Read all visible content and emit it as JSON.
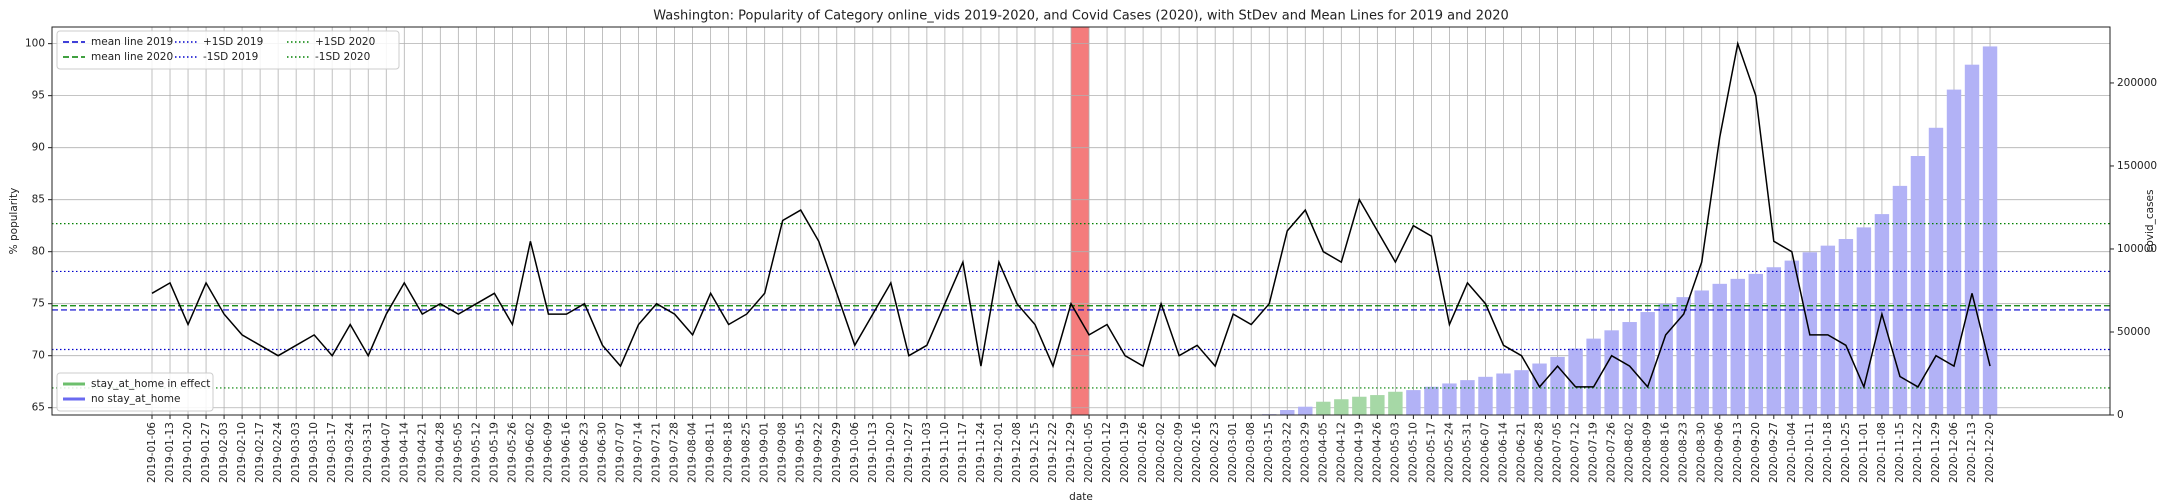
{
  "chart_data": {
    "type": "combo",
    "title": "Washington: Popularity of Category online_vids 2019-2020, and Covid Cases (2020), with StDev and Mean Lines for 2019 and 2020",
    "xlabel": "date",
    "ylabel": "% popularity",
    "y2label": "covid_cases",
    "categories": [
      "2019-01-06",
      "2019-01-13",
      "2019-01-20",
      "2019-01-27",
      "2019-02-03",
      "2019-02-10",
      "2019-02-17",
      "2019-02-24",
      "2019-03-03",
      "2019-03-10",
      "2019-03-17",
      "2019-03-24",
      "2019-03-31",
      "2019-04-07",
      "2019-04-14",
      "2019-04-21",
      "2019-04-28",
      "2019-05-05",
      "2019-05-12",
      "2019-05-19",
      "2019-05-26",
      "2019-06-02",
      "2019-06-09",
      "2019-06-16",
      "2019-06-23",
      "2019-06-30",
      "2019-07-07",
      "2019-07-14",
      "2019-07-21",
      "2019-07-28",
      "2019-08-04",
      "2019-08-11",
      "2019-08-18",
      "2019-08-25",
      "2019-09-01",
      "2019-09-08",
      "2019-09-15",
      "2019-09-22",
      "2019-09-29",
      "2019-10-06",
      "2019-10-13",
      "2019-10-20",
      "2019-10-27",
      "2019-11-03",
      "2019-11-10",
      "2019-11-17",
      "2019-11-24",
      "2019-12-01",
      "2019-12-08",
      "2019-12-15",
      "2019-12-22",
      "2019-12-29",
      "2020-01-05",
      "2020-01-12",
      "2020-01-19",
      "2020-01-26",
      "2020-02-02",
      "2020-02-09",
      "2020-02-16",
      "2020-02-23",
      "2020-03-01",
      "2020-03-08",
      "2020-03-15",
      "2020-03-22",
      "2020-03-29",
      "2020-04-05",
      "2020-04-12",
      "2020-04-19",
      "2020-04-26",
      "2020-05-03",
      "2020-05-10",
      "2020-05-17",
      "2020-05-24",
      "2020-05-31",
      "2020-06-07",
      "2020-06-14",
      "2020-06-21",
      "2020-06-28",
      "2020-07-05",
      "2020-07-12",
      "2020-07-19",
      "2020-07-26",
      "2020-08-02",
      "2020-08-09",
      "2020-08-16",
      "2020-08-23",
      "2020-08-30",
      "2020-09-06",
      "2020-09-13",
      "2020-09-20",
      "2020-09-27",
      "2020-10-04",
      "2020-10-11",
      "2020-10-18",
      "2020-10-25",
      "2020-11-01",
      "2020-11-08",
      "2020-11-15",
      "2020-11-22",
      "2020-11-29",
      "2020-12-06",
      "2020-12-13",
      "2020-12-20"
    ],
    "series": [
      {
        "type": "bar",
        "name": "stay_at_home in effect",
        "color": "#a6d8a6",
        "axis": "y2",
        "values": [
          null,
          null,
          null,
          null,
          null,
          null,
          null,
          null,
          null,
          null,
          null,
          null,
          null,
          null,
          null,
          null,
          null,
          null,
          null,
          null,
          null,
          null,
          null,
          null,
          null,
          null,
          null,
          null,
          null,
          null,
          null,
          null,
          null,
          null,
          null,
          null,
          null,
          null,
          null,
          null,
          null,
          null,
          null,
          null,
          null,
          null,
          null,
          null,
          null,
          null,
          null,
          null,
          null,
          null,
          null,
          null,
          null,
          null,
          null,
          null,
          null,
          null,
          null,
          null,
          null,
          8000,
          9500,
          11000,
          12000,
          14000,
          null,
          null,
          null,
          null,
          null,
          null,
          null,
          null,
          null,
          null,
          null,
          null,
          null,
          null,
          null,
          null,
          null,
          null,
          null,
          null,
          null,
          null,
          null,
          null,
          null,
          null,
          null,
          null,
          null,
          null,
          null,
          null,
          null
        ]
      },
      {
        "type": "bar",
        "name": "no stay_at_home",
        "color": "#b2b2f6",
        "axis": "y2",
        "values": [
          null,
          null,
          null,
          null,
          null,
          null,
          null,
          null,
          null,
          null,
          null,
          null,
          null,
          null,
          null,
          null,
          null,
          null,
          null,
          null,
          null,
          null,
          null,
          null,
          null,
          null,
          null,
          null,
          null,
          null,
          null,
          null,
          null,
          null,
          null,
          null,
          null,
          null,
          null,
          null,
          null,
          null,
          null,
          null,
          null,
          null,
          null,
          null,
          null,
          null,
          null,
          null,
          null,
          null,
          null,
          null,
          null,
          null,
          null,
          null,
          null,
          null,
          500,
          3000,
          5000,
          null,
          null,
          null,
          null,
          null,
          15000,
          17000,
          19000,
          21000,
          23000,
          25000,
          27000,
          31000,
          35000,
          40000,
          46000,
          51000,
          56000,
          62000,
          67000,
          71000,
          75000,
          79000,
          82000,
          85000,
          89000,
          93000,
          98000,
          102000,
          106000,
          113000,
          121000,
          138000,
          156000,
          173000,
          196000,
          211000,
          222000
        ]
      },
      {
        "type": "line",
        "color": "#000000",
        "values": [
          76,
          77,
          73,
          77,
          74,
          72,
          71,
          70,
          71,
          72,
          70,
          73,
          70,
          74,
          77,
          74,
          75,
          74,
          75,
          76,
          73,
          81,
          74,
          74,
          75,
          71,
          69,
          73,
          75,
          74,
          72,
          76,
          73,
          74,
          76,
          83,
          84,
          81,
          76,
          71,
          74,
          77,
          70,
          71,
          75,
          79,
          69,
          79,
          75,
          73,
          69,
          75,
          72,
          73,
          70,
          69,
          75,
          70,
          71,
          69,
          74,
          73,
          75,
          82,
          84,
          80,
          79,
          85,
          82,
          79,
          82.5,
          81.5,
          73,
          77,
          75,
          71,
          70,
          67,
          69,
          67,
          67,
          70,
          69,
          67,
          72,
          74,
          79,
          91,
          100,
          95,
          81,
          80,
          72,
          72,
          71,
          67,
          74,
          68,
          67,
          70,
          69,
          76,
          69
        ]
      }
    ],
    "reference_lines": [
      {
        "name": "mean line 2019",
        "value": 74.4,
        "color": "#0000cc",
        "style": "dashed"
      },
      {
        "name": "mean line 2020",
        "value": 74.8,
        "color": "#008000",
        "style": "dashed"
      },
      {
        "name": "+1SD 2019",
        "value": 78.1,
        "color": "#0000cc",
        "style": "dotted"
      },
      {
        "name": "-1SD 2019",
        "value": 70.6,
        "color": "#0000cc",
        "style": "dotted"
      },
      {
        "name": "+1SD 2020",
        "value": 82.7,
        "color": "#008000",
        "style": "dotted"
      },
      {
        "name": "-1SD 2020",
        "value": 66.9,
        "color": "#008000",
        "style": "dotted"
      }
    ],
    "highlight_span": {
      "from": "2019-12-29",
      "to": "2020-01-05",
      "color": "#f47c7c"
    },
    "ylim": [
      64.3,
      101.6
    ],
    "yticks": [
      65,
      70,
      75,
      80,
      85,
      90,
      95,
      100
    ],
    "y2lim": [
      0,
      233700
    ],
    "y2ticks": [
      0,
      50000,
      100000,
      150000,
      200000
    ],
    "grid": true,
    "reference_legend_loc": "upper left",
    "bar_legend_loc": "lower left"
  }
}
